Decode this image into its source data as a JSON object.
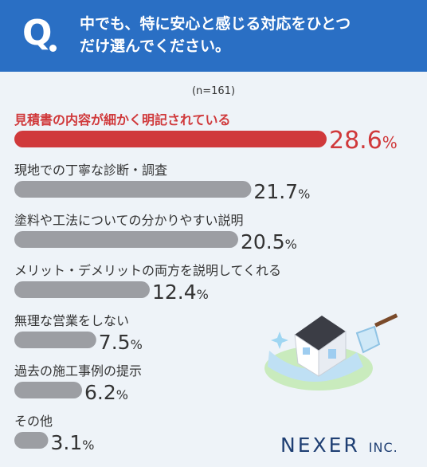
{
  "header": {
    "q_label": "Q",
    "question_line1": "中でも、特に安心と感じる対応をひとつ",
    "question_line2": "だけ選んでください。"
  },
  "sample": "(n=161)",
  "colors": {
    "highlight": "#d0393b",
    "bar": "#9c9ea3",
    "header": "#2a6fc4",
    "text": "#333333"
  },
  "chart_data": {
    "type": "bar",
    "orientation": "horizontal",
    "unit": "%",
    "categories": [
      "見積書の内容が細かく明記されている",
      "現地での丁寧な診断・調査",
      "塗料や工法についての分かりやすい説明",
      "メリット・デメリットの両方を説明してくれる",
      "無理な営業をしない",
      "過去の施工事例の提示",
      "その他"
    ],
    "values": [
      28.6,
      21.7,
      20.5,
      12.4,
      7.5,
      6.2,
      3.1
    ],
    "value_labels": [
      "28.6",
      "21.7",
      "20.5",
      "12.4",
      "7.5",
      "6.2",
      "3.1"
    ],
    "highlight_index": 0,
    "xlim": [
      0,
      28.6
    ]
  },
  "logo": {
    "main": "NEXER",
    "suffix": "INC."
  },
  "illustration": {
    "icon": "house-painting-icon"
  }
}
